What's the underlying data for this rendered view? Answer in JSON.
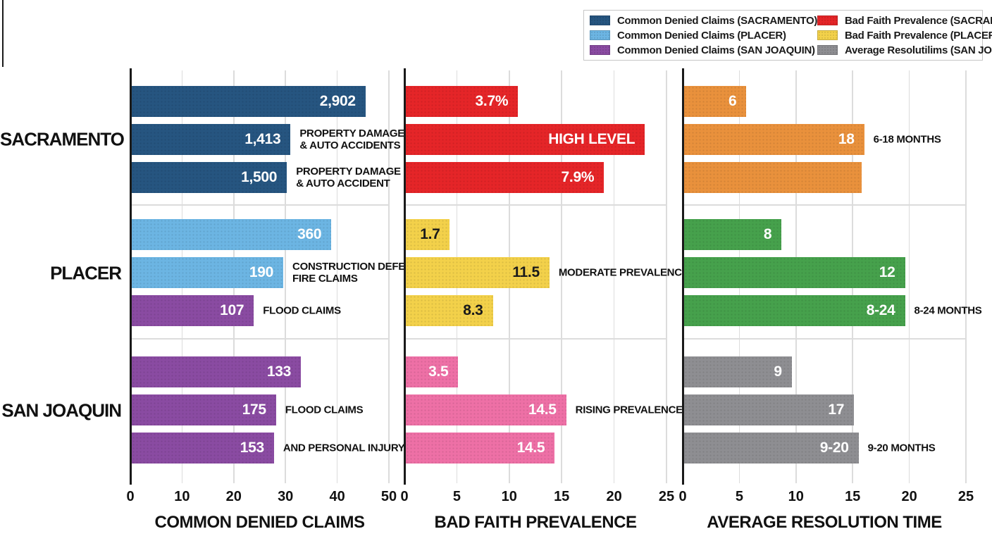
{
  "legend": {
    "items": [
      {
        "label": "Common Denied Claims (SACRAMENTO)",
        "color": "#265580"
      },
      {
        "label": "Common Denied Claims (PLACER)",
        "color": "#6cb5e3"
      },
      {
        "label": "Common Denied Claims (SAN JOAQUIN)",
        "color": "#8a4ba2"
      },
      {
        "label": "Bad Faith Prevalence (SACRAMENTO)",
        "color": "#e52528"
      },
      {
        "label": "Bad Faith Prevalence (PLACER)",
        "color": "#f3d14a"
      },
      {
        "label": "Average Resolutilims (SAN JOAQUIN)",
        "color": "#8e8e92"
      }
    ]
  },
  "row_groups": [
    "SACRAMENTO",
    "PLACER",
    "SAN JOAQUIN"
  ],
  "chart_data": [
    {
      "type": "bar",
      "title": "COMMON DENIED CLAIMS",
      "xlim": [
        0,
        50
      ],
      "xticks": [
        0,
        10,
        20,
        30,
        40,
        50
      ],
      "grid": true,
      "groups": [
        {
          "name": "SACRAMENTO",
          "color": "#265580",
          "bars": [
            {
              "display": "2,902",
              "length": 45.2
            },
            {
              "display": "1,413",
              "length": 30.7,
              "annotation": "PROPERTY DAMAGE\n& AUTO ACCIDENTS"
            },
            {
              "display": "1,500",
              "length": 30.0,
              "annotation": "PROPERTY DAMAGE\n& AUTO ACCIDENT"
            }
          ]
        },
        {
          "name": "PLACER",
          "color": "#6cb5e3",
          "bars": [
            {
              "display": "360",
              "length": 38.6
            },
            {
              "display": "190",
              "length": 29.3,
              "annotation": "CONSTRUCTION DEFECTS\nFIRE CLAIMS"
            },
            {
              "display": "107",
              "length": 23.6,
              "annotation": "FLOOD CLAIMS",
              "color": "#8a4ba2"
            }
          ]
        },
        {
          "name": "SAN JOAQUIN",
          "color": "#8a4ba2",
          "bars": [
            {
              "display": "133",
              "length": 32.7
            },
            {
              "display": "175",
              "length": 27.9,
              "annotation": "FLOOD CLAIMS"
            },
            {
              "display": "153",
              "length": 27.5,
              "annotation": "AND PERSONAL INJURY"
            }
          ]
        }
      ]
    },
    {
      "type": "bar",
      "title": "BAD FAITH PREVALENCE",
      "xlim": [
        0,
        25
      ],
      "xticks": [
        0,
        5,
        10,
        15,
        20,
        25
      ],
      "grid": true,
      "groups": [
        {
          "name": "SACRAMENTO",
          "color": "#e52528",
          "bars": [
            {
              "display": "3.7%",
              "length": 10.7
            },
            {
              "display": "HIGH LEVEL",
              "length": 22.8
            },
            {
              "display": "7.9%",
              "length": 18.9
            }
          ]
        },
        {
          "name": "PLACER",
          "color": "#f3d14a",
          "bars": [
            {
              "display": "1.7",
              "length": 4.2,
              "text_color": "#1a1a1a"
            },
            {
              "display": "11.5",
              "length": 13.7,
              "annotation": "MODERATE PREVALENCE",
              "text_color": "#1a1a1a"
            },
            {
              "display": "8.3",
              "length": 8.3,
              "text_color": "#1a1a1a"
            }
          ]
        },
        {
          "name": "SAN JOAQUIN",
          "color": "#ee70a6",
          "bars": [
            {
              "display": "3.5",
              "length": 5.0
            },
            {
              "display": "14.5",
              "length": 15.3,
              "annotation": "RISING PREVALENCE"
            },
            {
              "display": "14.5",
              "length": 14.2
            }
          ]
        }
      ]
    },
    {
      "type": "bar",
      "title": "AVERAGE RESOLUTION TIME",
      "xlim": [
        0,
        25
      ],
      "xticks": [
        0,
        5,
        10,
        15,
        20,
        25
      ],
      "grid": true,
      "groups": [
        {
          "name": "SACRAMENTO",
          "color": "#e9913c",
          "bars": [
            {
              "display": "6",
              "length": 5.5
            },
            {
              "display": "18",
              "length": 15.9,
              "annotation": "6-18 MONTHS"
            },
            {
              "display": "",
              "length": 15.7
            }
          ]
        },
        {
          "name": "PLACER",
          "color": "#46a14c",
          "bars": [
            {
              "display": "8",
              "length": 8.6
            },
            {
              "display": "12",
              "length": 19.5
            },
            {
              "display": "8-24",
              "length": 19.5,
              "annotation": "8-24 MONTHS"
            }
          ]
        },
        {
          "name": "SAN JOAQUIN",
          "color": "#8e8e92",
          "bars": [
            {
              "display": "9",
              "length": 9.5
            },
            {
              "display": "17",
              "length": 15.0
            },
            {
              "display": "9-20",
              "length": 15.4,
              "annotation": "9-20 MONTHS"
            }
          ]
        }
      ]
    }
  ]
}
